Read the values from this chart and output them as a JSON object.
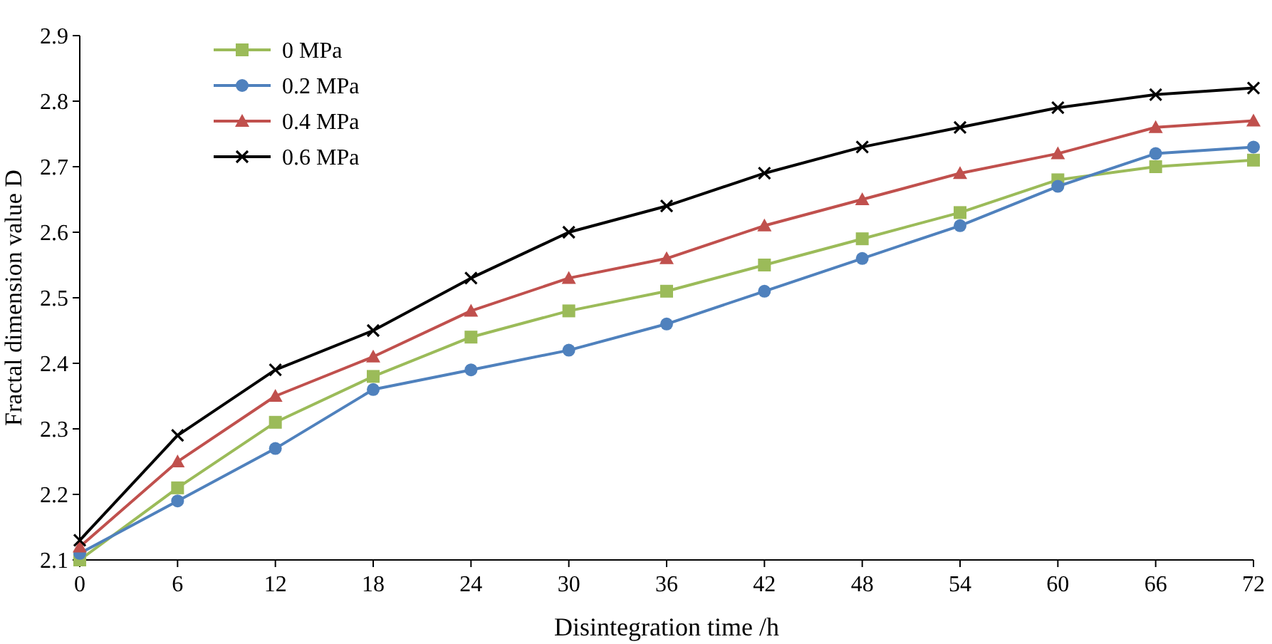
{
  "chart_data": {
    "type": "line",
    "xlabel": "Disintegration time /h",
    "ylabel": "Fractal dimension value D",
    "x": [
      0,
      6,
      12,
      18,
      24,
      30,
      36,
      42,
      48,
      54,
      60,
      66,
      72
    ],
    "series": [
      {
        "name": "0 MPa",
        "color": "#9bbb59",
        "marker": "square",
        "values": [
          2.1,
          2.21,
          2.31,
          2.38,
          2.44,
          2.48,
          2.51,
          2.55,
          2.59,
          2.63,
          2.68,
          2.7,
          2.71
        ]
      },
      {
        "name": "0.2 MPa",
        "color": "#4f81bd",
        "marker": "circle",
        "values": [
          2.11,
          2.19,
          2.27,
          2.36,
          2.39,
          2.42,
          2.46,
          2.51,
          2.56,
          2.61,
          2.67,
          2.72,
          2.73
        ]
      },
      {
        "name": "0.4 MPa",
        "color": "#c0504d",
        "marker": "triangle",
        "values": [
          2.12,
          2.25,
          2.35,
          2.41,
          2.48,
          2.53,
          2.56,
          2.61,
          2.65,
          2.69,
          2.72,
          2.76,
          2.77
        ]
      },
      {
        "name": "0.6 MPa",
        "color": "#000000",
        "marker": "cross",
        "values": [
          2.13,
          2.29,
          2.39,
          2.45,
          2.53,
          2.6,
          2.64,
          2.69,
          2.73,
          2.76,
          2.79,
          2.81,
          2.82
        ]
      }
    ],
    "xlim": [
      0,
      72
    ],
    "xticks": [
      0,
      6,
      12,
      18,
      24,
      30,
      36,
      42,
      48,
      54,
      60,
      66,
      72
    ],
    "ylim": [
      2.1,
      2.9
    ],
    "yticks": [
      2.1,
      2.2,
      2.3,
      2.4,
      2.5,
      2.6,
      2.7,
      2.8,
      2.9
    ],
    "grid": false,
    "legend": "top left",
    "line_style": "solid"
  }
}
